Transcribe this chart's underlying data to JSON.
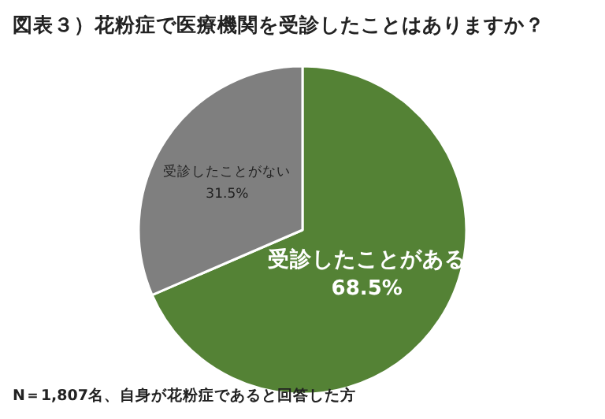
{
  "chart_data": {
    "type": "pie",
    "title": "図表３）花粉症で医療機関を受診したことはありますか？",
    "categories": [
      "受診したことがある",
      "受診したことがない"
    ],
    "values": [
      68.5,
      31.5
    ],
    "colors": [
      "#548235",
      "#7f7f7f"
    ],
    "value_labels": [
      "68.5%",
      "31.5%"
    ],
    "annotations": [
      "N＝1,807名、自身が花粉症であると回答した方"
    ]
  }
}
